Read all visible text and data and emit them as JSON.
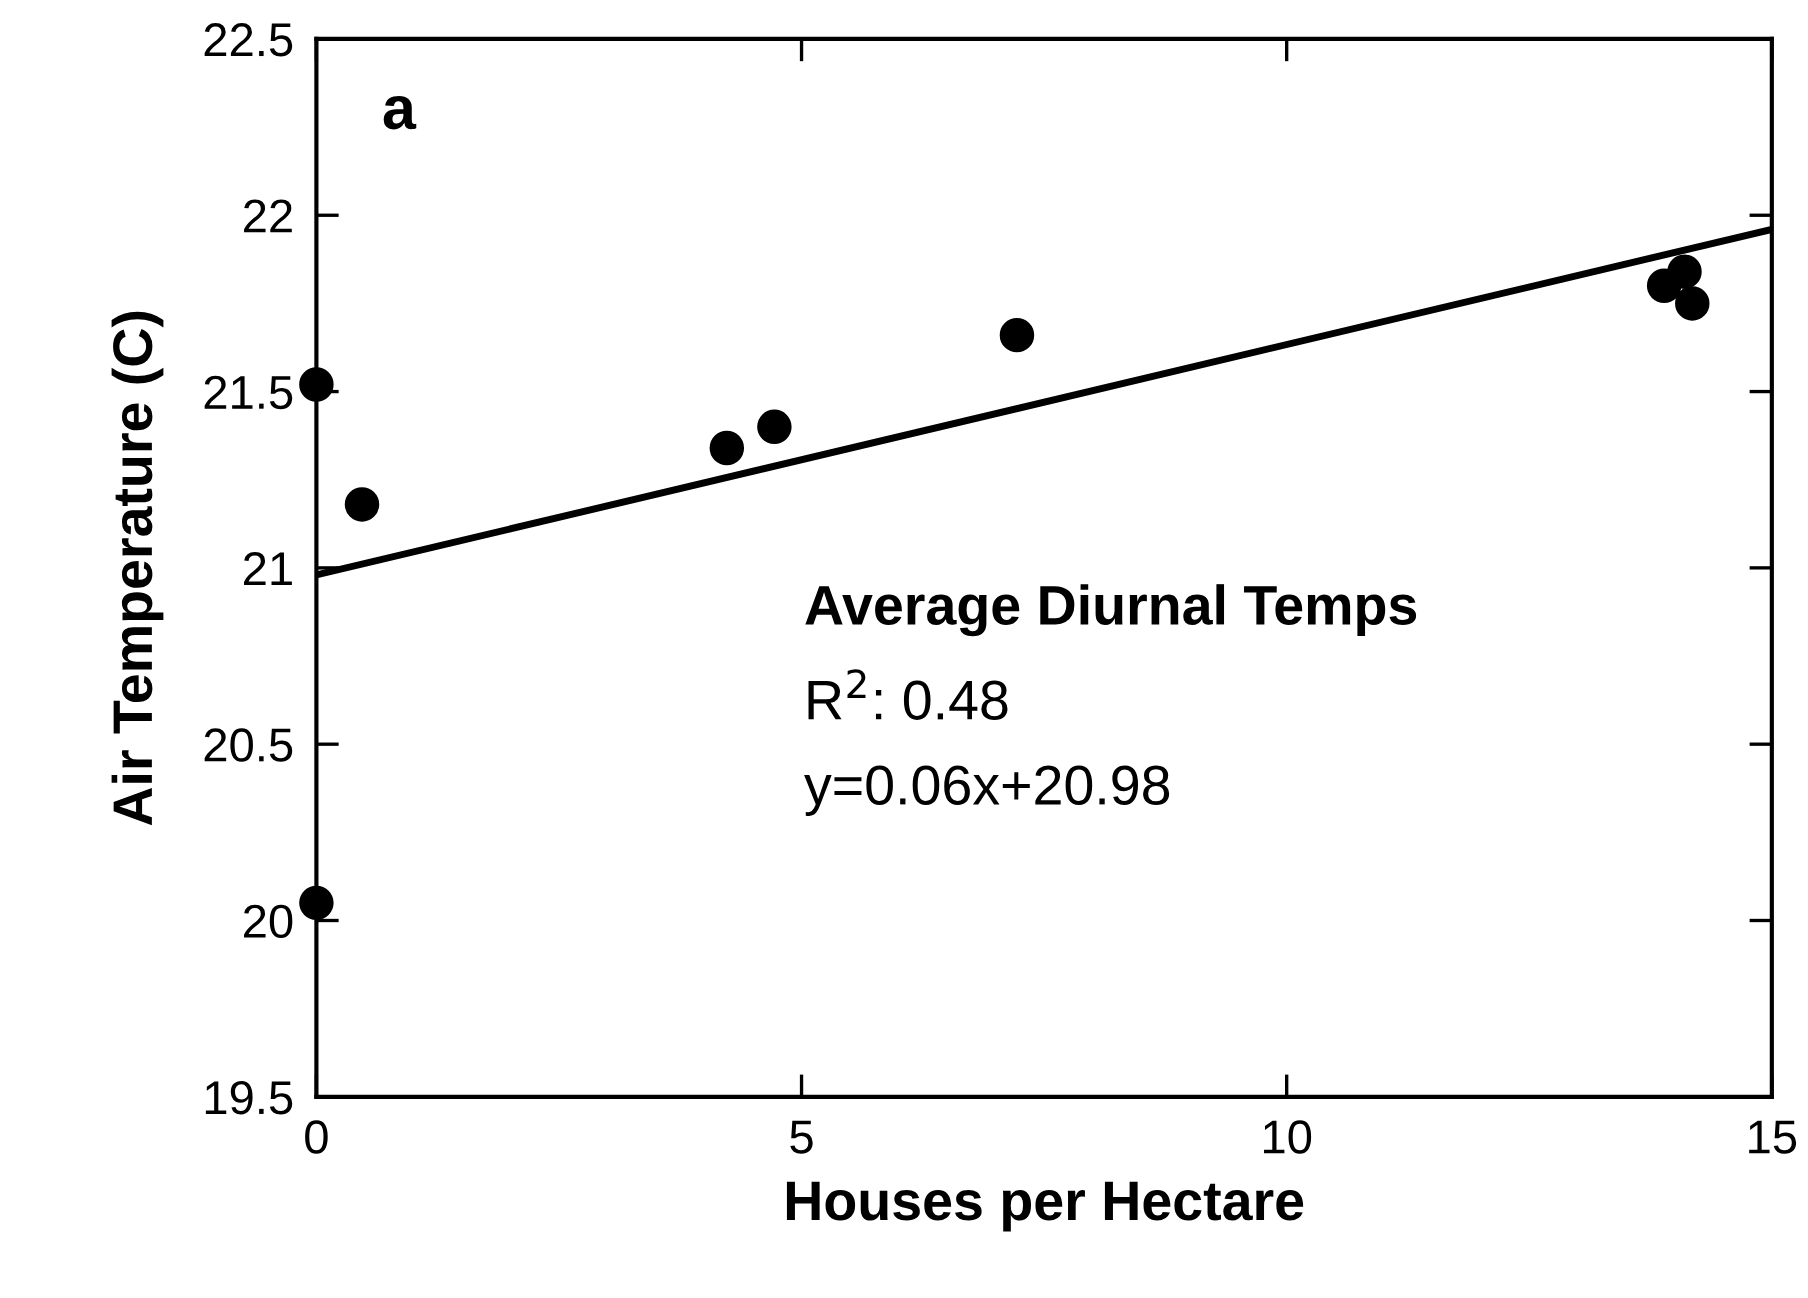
{
  "chart_data": {
    "type": "scatter",
    "xlabel": "Houses per Hectare",
    "ylabel": "Air Temperature (C)",
    "xlim": [
      0,
      15
    ],
    "ylim": [
      19.5,
      22.5
    ],
    "xticks": [
      0,
      5,
      10,
      15
    ],
    "yticks": [
      19.5,
      20,
      20.5,
      21,
      21.5,
      22,
      22.5
    ],
    "grid": false,
    "series": [
      {
        "marker": "circle",
        "color": "#000000",
        "x": [
          0,
          0,
          0.47,
          4.23,
          4.72,
          7.22,
          13.89,
          14.1,
          14.18
        ],
        "values": [
          21.52,
          20.05,
          21.18,
          21.34,
          21.4,
          21.66,
          21.8,
          21.84,
          21.75
        ]
      },
      {
        "type": "line",
        "color": "#000000",
        "x": [
          0,
          15
        ],
        "values": [
          20.98,
          21.96
        ],
        "line_style": "solid"
      }
    ],
    "annotations": [
      "a",
      "Average Diurnal Temps",
      "R$^{2}$: 0.48",
      "y=0.06x+20.98"
    ]
  }
}
